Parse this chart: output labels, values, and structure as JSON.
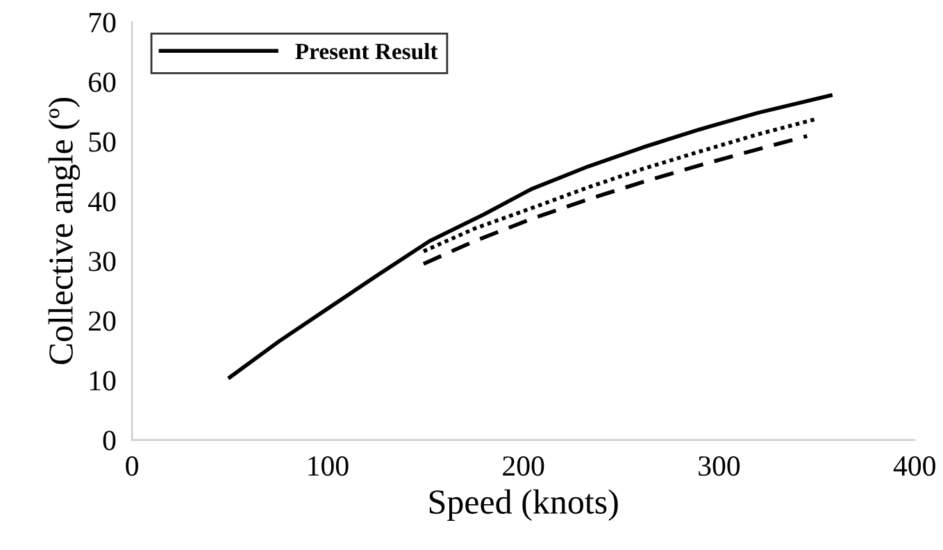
{
  "chart_data": {
    "type": "line",
    "xlabel": "Speed (knots)",
    "ylabel": "Collective angle (º)",
    "xlim": [
      0,
      400
    ],
    "xticks": [
      0,
      100,
      200,
      300,
      400
    ],
    "ylim": [
      0,
      70
    ],
    "yticks": [
      0,
      10,
      20,
      30,
      40,
      50,
      60,
      70
    ],
    "grid": false,
    "legend": "top left",
    "marker": "none",
    "series": [
      {
        "name": "Present Result",
        "color": "#000000",
        "line_style": "solid",
        "x": [
          50,
          75,
          100,
          125,
          152,
          180,
          204,
          233,
          261,
          290,
          320,
          357
        ],
        "values": [
          10.5,
          16.5,
          22,
          27.5,
          33.3,
          37.8,
          42,
          45.8,
          49,
          52,
          54.8,
          57.7
        ]
      },
      {
        "color": "#000000",
        "line_style": "dotted",
        "x": [
          149,
          175,
          204,
          233,
          261,
          290,
          320,
          349
        ],
        "values": [
          31.6,
          35.4,
          38.8,
          42.3,
          45.4,
          48.3,
          51.2,
          53.7
        ]
      },
      {
        "color": "#000000",
        "line_style": "dashed",
        "x": [
          149,
          175,
          204,
          233,
          261,
          290,
          320,
          345
        ],
        "values": [
          29.5,
          33.3,
          37,
          40.3,
          43.2,
          46,
          48.7,
          50.9
        ]
      }
    ]
  }
}
